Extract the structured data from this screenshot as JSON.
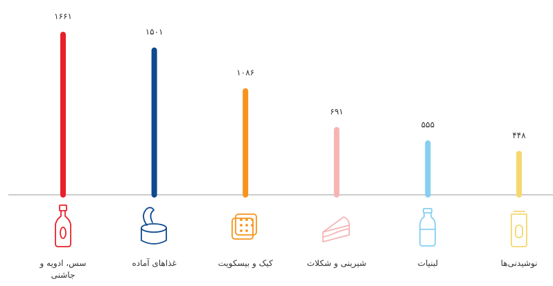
{
  "chart_data": {
    "type": "bar",
    "categories": [
      "سس، ادویه و جاشنی",
      "غذاهای آماده",
      "کیک و بیسکویت",
      "شیرینی و شکلات",
      "لبنیات",
      "نوشیدنی‌ها"
    ],
    "values": [
      1661,
      1501,
      1086,
      691,
      555,
      448
    ],
    "value_labels": [
      "۱۶۶۱",
      "۱۵۰۱",
      "۱۰۸۶",
      "۶۹۱",
      "۵۵۵",
      "۴۴۸"
    ],
    "colors": [
      "#e8202a",
      "#0d4a8e",
      "#f7941d",
      "#f6b4b4",
      "#86cff0",
      "#f5d76e"
    ]
  }
}
